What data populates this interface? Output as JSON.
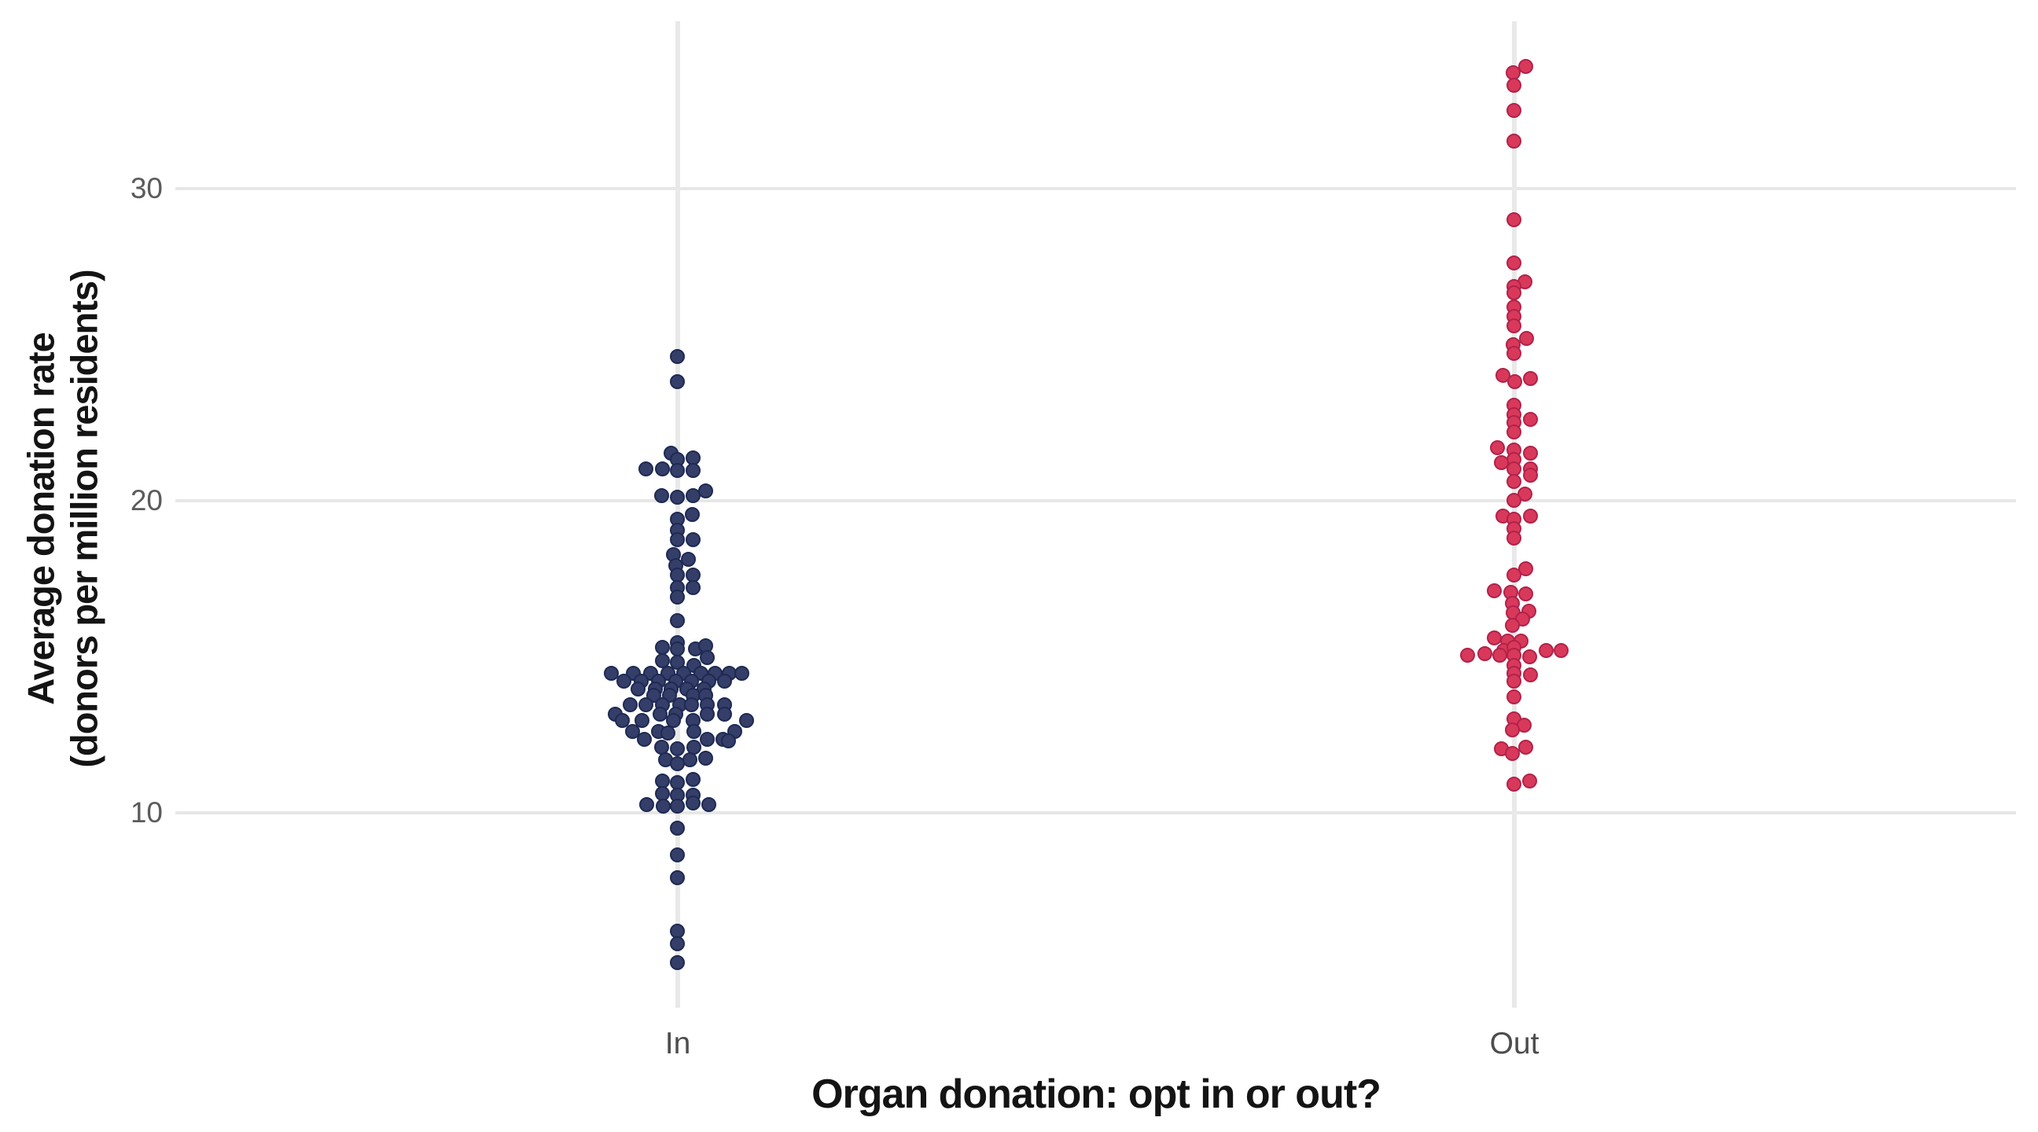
{
  "figure": {
    "background": "#ffffff",
    "x_axis_title": "Organ donation: opt in or out?",
    "y_axis_title_line1": "Average donation rate",
    "y_axis_title_line2": "(donors per million residents)"
  },
  "chart_data": {
    "type": "scatter",
    "subtype": "jittered-strip-plot",
    "title": "",
    "xlabel": "Organ donation: opt in or out?",
    "ylabel": "Average donation rate (donors per million residents)",
    "categories": [
      "In",
      "Out"
    ],
    "yticks": [
      10,
      20,
      30
    ],
    "ylim": [
      3.7,
      35.4
    ],
    "grid": "major-only",
    "legend": "none",
    "series": [
      {
        "name": "In",
        "color": "#343e68",
        "stroke": "#1e2a52",
        "points": [
          {
            "dx": 0,
            "y": 24.6
          },
          {
            "dx": 0,
            "y": 23.8
          },
          {
            "dx": -8,
            "y": 21.5
          },
          {
            "dx": 0,
            "y": 21.3
          },
          {
            "dx": 20,
            "y": 21.35
          },
          {
            "dx": -40,
            "y": 21.0
          },
          {
            "dx": -19,
            "y": 21.0
          },
          {
            "dx": 0,
            "y": 20.95
          },
          {
            "dx": 20,
            "y": 20.95
          },
          {
            "dx": 36,
            "y": 20.3
          },
          {
            "dx": -20,
            "y": 20.15
          },
          {
            "dx": 0,
            "y": 20.1
          },
          {
            "dx": 20,
            "y": 20.15
          },
          {
            "dx": 19,
            "y": 19.55
          },
          {
            "dx": 0,
            "y": 19.4
          },
          {
            "dx": 0,
            "y": 19.05
          },
          {
            "dx": 0,
            "y": 18.75
          },
          {
            "dx": 20,
            "y": 18.75
          },
          {
            "dx": -5,
            "y": 18.25
          },
          {
            "dx": 14,
            "y": 18.1
          },
          {
            "dx": -2,
            "y": 17.9
          },
          {
            "dx": 0,
            "y": 17.6
          },
          {
            "dx": 20,
            "y": 17.6
          },
          {
            "dx": 0,
            "y": 17.2
          },
          {
            "dx": 20,
            "y": 17.2
          },
          {
            "dx": 0,
            "y": 16.9
          },
          {
            "dx": 0,
            "y": 16.15
          },
          {
            "dx": 0,
            "y": 15.45
          },
          {
            "dx": -19,
            "y": 15.3
          },
          {
            "dx": 0,
            "y": 15.25
          },
          {
            "dx": 23,
            "y": 15.25
          },
          {
            "dx": 36,
            "y": 15.35
          },
          {
            "dx": -19,
            "y": 14.85
          },
          {
            "dx": 0,
            "y": 14.8
          },
          {
            "dx": 21,
            "y": 14.7
          },
          {
            "dx": 38,
            "y": 14.95
          },
          {
            "dx": -84,
            "y": 14.45
          },
          {
            "dx": -56,
            "y": 14.45
          },
          {
            "dx": -34,
            "y": 14.45
          },
          {
            "dx": -12,
            "y": 14.45
          },
          {
            "dx": 8,
            "y": 14.45
          },
          {
            "dx": 30,
            "y": 14.45
          },
          {
            "dx": 48,
            "y": 14.45
          },
          {
            "dx": 66,
            "y": 14.45
          },
          {
            "dx": 82,
            "y": 14.45
          },
          {
            "dx": -68,
            "y": 14.2
          },
          {
            "dx": -46,
            "y": 14.2
          },
          {
            "dx": -24,
            "y": 14.2
          },
          {
            "dx": -2,
            "y": 14.2
          },
          {
            "dx": 18,
            "y": 14.2
          },
          {
            "dx": 40,
            "y": 14.2
          },
          {
            "dx": 60,
            "y": 14.2
          },
          {
            "dx": -50,
            "y": 13.95
          },
          {
            "dx": -28,
            "y": 13.95
          },
          {
            "dx": -8,
            "y": 13.95
          },
          {
            "dx": 12,
            "y": 13.95
          },
          {
            "dx": 34,
            "y": 13.95
          },
          {
            "dx": -30,
            "y": 13.75
          },
          {
            "dx": -10,
            "y": 13.75
          },
          {
            "dx": 20,
            "y": 13.75
          },
          {
            "dx": 36,
            "y": 13.75
          },
          {
            "dx": -60,
            "y": 13.45
          },
          {
            "dx": -40,
            "y": 13.45
          },
          {
            "dx": -19,
            "y": 13.45
          },
          {
            "dx": 3,
            "y": 13.45
          },
          {
            "dx": 18,
            "y": 13.45
          },
          {
            "dx": 38,
            "y": 13.45
          },
          {
            "dx": 60,
            "y": 13.45
          },
          {
            "dx": -79,
            "y": 13.15
          },
          {
            "dx": -22,
            "y": 13.15
          },
          {
            "dx": -2,
            "y": 13.15
          },
          {
            "dx": 38,
            "y": 13.15
          },
          {
            "dx": 60,
            "y": 13.15
          },
          {
            "dx": -70,
            "y": 12.95
          },
          {
            "dx": -45,
            "y": 12.95
          },
          {
            "dx": -5,
            "y": 12.95
          },
          {
            "dx": 20,
            "y": 12.95
          },
          {
            "dx": 88,
            "y": 12.95
          },
          {
            "dx": -57,
            "y": 12.6
          },
          {
            "dx": -24,
            "y": 12.6
          },
          {
            "dx": -12,
            "y": 12.55
          },
          {
            "dx": 21,
            "y": 12.6
          },
          {
            "dx": 73,
            "y": 12.6
          },
          {
            "dx": -42,
            "y": 12.35
          },
          {
            "dx": 38,
            "y": 12.35
          },
          {
            "dx": 58,
            "y": 12.35
          },
          {
            "dx": 65,
            "y": 12.3
          },
          {
            "dx": -20,
            "y": 12.1
          },
          {
            "dx": 0,
            "y": 12.05
          },
          {
            "dx": 21,
            "y": 12.1
          },
          {
            "dx": -15,
            "y": 11.7
          },
          {
            "dx": 0,
            "y": 11.55
          },
          {
            "dx": 16,
            "y": 11.7
          },
          {
            "dx": 36,
            "y": 11.75
          },
          {
            "dx": -19,
            "y": 11.0
          },
          {
            "dx": 0,
            "y": 10.95
          },
          {
            "dx": 20,
            "y": 11.05
          },
          {
            "dx": -19,
            "y": 10.6
          },
          {
            "dx": 0,
            "y": 10.55
          },
          {
            "dx": 20,
            "y": 10.55
          },
          {
            "dx": -39,
            "y": 10.25
          },
          {
            "dx": -18,
            "y": 10.2
          },
          {
            "dx": 0,
            "y": 10.2
          },
          {
            "dx": 20,
            "y": 10.3
          },
          {
            "dx": 40,
            "y": 10.25
          },
          {
            "dx": 0,
            "y": 9.5
          },
          {
            "dx": 0,
            "y": 8.65
          },
          {
            "dx": 0,
            "y": 7.9
          },
          {
            "dx": 0,
            "y": 6.2
          },
          {
            "dx": 0,
            "y": 5.8
          },
          {
            "dx": 0,
            "y": 5.2
          }
        ]
      },
      {
        "name": "Out",
        "color": "#d8395b",
        "stroke": "#b22249",
        "points": [
          {
            "dx": 15,
            "y": 33.9
          },
          {
            "dx": -1,
            "y": 33.7
          },
          {
            "dx": 0,
            "y": 33.3
          },
          {
            "dx": 0,
            "y": 32.5
          },
          {
            "dx": 0,
            "y": 31.5
          },
          {
            "dx": 0,
            "y": 29.0
          },
          {
            "dx": 0,
            "y": 27.6
          },
          {
            "dx": 14,
            "y": 27.0
          },
          {
            "dx": 0,
            "y": 26.85
          },
          {
            "dx": 0,
            "y": 26.65
          },
          {
            "dx": 0,
            "y": 26.2
          },
          {
            "dx": 0,
            "y": 25.9
          },
          {
            "dx": 0,
            "y": 25.6
          },
          {
            "dx": 16,
            "y": 25.2
          },
          {
            "dx": -1,
            "y": 25.0
          },
          {
            "dx": 0,
            "y": 24.7
          },
          {
            "dx": -14,
            "y": 24.0
          },
          {
            "dx": 21,
            "y": 23.9
          },
          {
            "dx": 1,
            "y": 23.8
          },
          {
            "dx": 0,
            "y": 23.05
          },
          {
            "dx": 0,
            "y": 22.75
          },
          {
            "dx": 21,
            "y": 22.6
          },
          {
            "dx": 0,
            "y": 22.5
          },
          {
            "dx": 0,
            "y": 22.2
          },
          {
            "dx": -21,
            "y": 21.7
          },
          {
            "dx": 0,
            "y": 21.6
          },
          {
            "dx": 21,
            "y": 21.5
          },
          {
            "dx": 0,
            "y": 21.3
          },
          {
            "dx": -16,
            "y": 21.2
          },
          {
            "dx": 0,
            "y": 21.0
          },
          {
            "dx": 21,
            "y": 21.0
          },
          {
            "dx": 21,
            "y": 20.8
          },
          {
            "dx": 0,
            "y": 20.6
          },
          {
            "dx": 14,
            "y": 20.2
          },
          {
            "dx": 0,
            "y": 20.0
          },
          {
            "dx": -14,
            "y": 19.5
          },
          {
            "dx": 21,
            "y": 19.5
          },
          {
            "dx": 0,
            "y": 19.4
          },
          {
            "dx": 0,
            "y": 19.1
          },
          {
            "dx": 0,
            "y": 18.8
          },
          {
            "dx": 15,
            "y": 17.8
          },
          {
            "dx": 0,
            "y": 17.6
          },
          {
            "dx": -25,
            "y": 17.1
          },
          {
            "dx": -4,
            "y": 17.05
          },
          {
            "dx": 15,
            "y": 17.0
          },
          {
            "dx": -2,
            "y": 16.7
          },
          {
            "dx": -1,
            "y": 16.4
          },
          {
            "dx": 19,
            "y": 16.45
          },
          {
            "dx": 11,
            "y": 16.2
          },
          {
            "dx": -2,
            "y": 16.0
          },
          {
            "dx": -25,
            "y": 15.6
          },
          {
            "dx": -8,
            "y": 15.5
          },
          {
            "dx": 9,
            "y": 15.5
          },
          {
            "dx": -13,
            "y": 15.2
          },
          {
            "dx": 0,
            "y": 15.3
          },
          {
            "dx": -59,
            "y": 15.05
          },
          {
            "dx": -37,
            "y": 15.1
          },
          {
            "dx": -18,
            "y": 15.05
          },
          {
            "dx": 0,
            "y": 15.05
          },
          {
            "dx": 20,
            "y": 15.0
          },
          {
            "dx": 41,
            "y": 15.2
          },
          {
            "dx": 60,
            "y": 15.2
          },
          {
            "dx": 0,
            "y": 14.7
          },
          {
            "dx": 0,
            "y": 14.45
          },
          {
            "dx": 21,
            "y": 14.4
          },
          {
            "dx": 0,
            "y": 14.2
          },
          {
            "dx": 0,
            "y": 13.7
          },
          {
            "dx": 0,
            "y": 13.0
          },
          {
            "dx": 13,
            "y": 12.8
          },
          {
            "dx": -2,
            "y": 12.65
          },
          {
            "dx": -16,
            "y": 12.05
          },
          {
            "dx": 15,
            "y": 12.1
          },
          {
            "dx": -2,
            "y": 11.9
          },
          {
            "dx": 0,
            "y": 10.9
          },
          {
            "dx": 20,
            "y": 11.0
          }
        ]
      }
    ]
  }
}
